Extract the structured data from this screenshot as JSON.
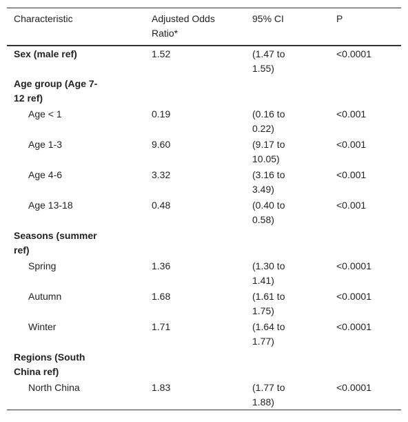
{
  "table": {
    "columns": [
      "Characteristic",
      "Adjusted Odds Ratio*",
      "95% CI",
      "P"
    ],
    "sections": [
      {
        "label": "Sex (male ref)",
        "values": [
          "1.52",
          "(1.47 to 1.55)",
          "<0.0001"
        ]
      },
      {
        "label": "Age group (Age 7-12 ref)",
        "items": [
          {
            "label": "Age < 1",
            "values": [
              "0.19",
              "(0.16 to 0.22)",
              "<0.001"
            ]
          },
          {
            "label": "Age 1-3",
            "values": [
              "9.60",
              "(9.17 to 10.05)",
              "<0.001"
            ]
          },
          {
            "label": "Age 4-6",
            "values": [
              "3.32",
              "(3.16 to 3.49)",
              "<0.001"
            ]
          },
          {
            "label": "Age 13-18",
            "values": [
              "0.48",
              "(0.40 to 0.58)",
              "<0.001"
            ]
          }
        ]
      },
      {
        "label": "Seasons (summer ref)",
        "items": [
          {
            "label": "Spring",
            "values": [
              "1.36",
              "(1.30 to 1.41)",
              "<0.0001"
            ]
          },
          {
            "label": "Autumn",
            "values": [
              "1.68",
              "(1.61 to 1.75)",
              "<0.0001"
            ]
          },
          {
            "label": "Winter",
            "values": [
              "1.71",
              "(1.64 to 1.77)",
              "<0.0001"
            ]
          }
        ]
      },
      {
        "label": "Regions (South China ref)",
        "items": [
          {
            "label": "North China",
            "values": [
              "1.83",
              "(1.77 to 1.88)",
              "<0.0001"
            ]
          }
        ]
      }
    ]
  }
}
